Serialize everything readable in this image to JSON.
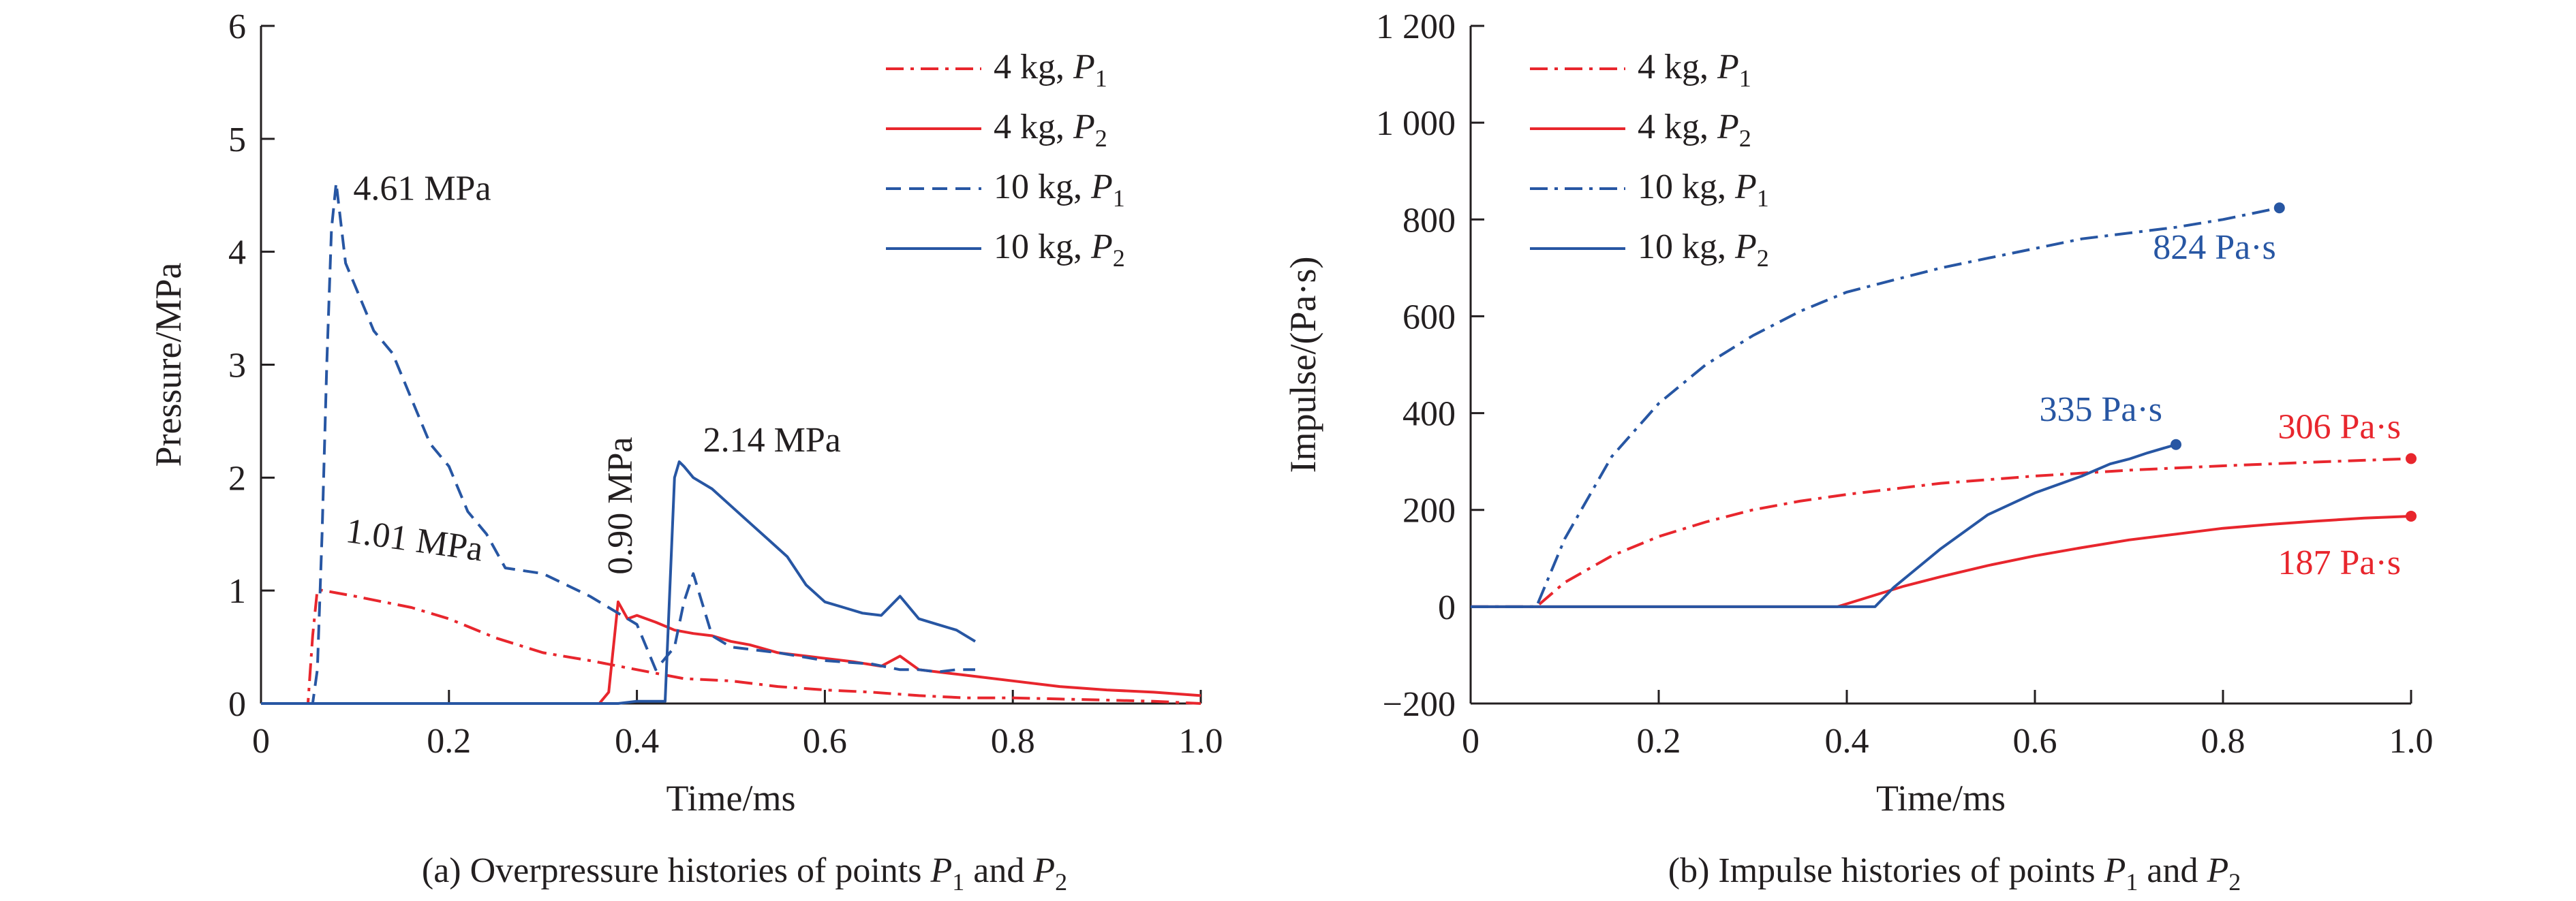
{
  "colors": {
    "red": "#e8262d",
    "blue": "#2756a3",
    "axis": "#231f20"
  },
  "chart_data": [
    {
      "type": "line",
      "xlabel": "Time/ms",
      "ylabel": "Pressure/MPa",
      "xlim": [
        0,
        1.0
      ],
      "ylim": [
        0,
        6
      ],
      "xticks": [
        0,
        0.2,
        0.4,
        0.6,
        0.8,
        1.0
      ],
      "xtick_labels": [
        "0",
        "0.2",
        "0.4",
        "0.6",
        "0.8",
        "1.0"
      ],
      "yticks": [
        0,
        1,
        2,
        3,
        4,
        5,
        6
      ],
      "ytick_labels": [
        "0",
        "1",
        "2",
        "3",
        "4",
        "5",
        "6"
      ],
      "grid": false,
      "legend_position": "top-right",
      "caption": {
        "prefix": "(a) Overpressure histories of points ",
        "p1": "P",
        "p1_sub": "1",
        "mid": " and ",
        "p2": "P",
        "p2_sub": "2"
      },
      "series": [
        {
          "name": "4 kg, P1",
          "label_main": "4 kg, ",
          "label_var": "P",
          "label_sub": "1",
          "color": "#e8262d",
          "dash": "dashdot",
          "x": [
            0,
            0.05,
            0.055,
            0.06,
            0.08,
            0.1,
            0.13,
            0.16,
            0.2,
            0.25,
            0.3,
            0.35,
            0.4,
            0.45,
            0.5,
            0.55,
            0.6,
            0.65,
            0.7,
            0.75,
            0.8,
            0.85,
            0.9,
            0.95,
            1.0
          ],
          "y": [
            0,
            0,
            0.6,
            1.01,
            0.98,
            0.95,
            0.9,
            0.85,
            0.75,
            0.58,
            0.45,
            0.38,
            0.3,
            0.22,
            0.2,
            0.15,
            0.12,
            0.1,
            0.07,
            0.05,
            0.05,
            0.04,
            0.03,
            0.02,
            0.0
          ]
        },
        {
          "name": "4 kg, P2",
          "label_main": "4 kg, ",
          "label_var": "P",
          "label_sub": "2",
          "color": "#e8262d",
          "dash": "solid",
          "x": [
            0,
            0.36,
            0.37,
            0.38,
            0.39,
            0.4,
            0.42,
            0.44,
            0.46,
            0.48,
            0.5,
            0.52,
            0.55,
            0.58,
            0.6,
            0.63,
            0.66,
            0.68,
            0.7,
            0.72,
            0.75,
            0.8,
            0.85,
            0.9,
            0.95,
            1.0
          ],
          "y": [
            0,
            0,
            0.1,
            0.9,
            0.75,
            0.78,
            0.72,
            0.65,
            0.62,
            0.6,
            0.55,
            0.52,
            0.45,
            0.42,
            0.4,
            0.37,
            0.33,
            0.42,
            0.3,
            0.28,
            0.25,
            0.2,
            0.15,
            0.12,
            0.1,
            0.07
          ]
        },
        {
          "name": "10 kg, P1",
          "label_main": "10 kg, ",
          "label_var": "P",
          "label_sub": "1",
          "color": "#2756a3",
          "dash": "dashed",
          "x": [
            0,
            0.055,
            0.06,
            0.065,
            0.07,
            0.075,
            0.08,
            0.09,
            0.1,
            0.12,
            0.14,
            0.16,
            0.18,
            0.2,
            0.22,
            0.24,
            0.26,
            0.3,
            0.35,
            0.38,
            0.4,
            0.42,
            0.44,
            0.45,
            0.46,
            0.48,
            0.5,
            0.55,
            0.6,
            0.65,
            0.68,
            0.7,
            0.72,
            0.74,
            0.76
          ],
          "y": [
            0,
            0,
            0.3,
            1.5,
            3.0,
            4.2,
            4.61,
            3.9,
            3.7,
            3.3,
            3.1,
            2.7,
            2.3,
            2.1,
            1.7,
            1.5,
            1.2,
            1.15,
            0.95,
            0.8,
            0.7,
            0.3,
            0.5,
            0.9,
            1.15,
            0.6,
            0.5,
            0.45,
            0.38,
            0.35,
            0.3,
            0.3,
            0.28,
            0.3,
            0.3
          ]
        },
        {
          "name": "10 kg, P2",
          "label_main": "10 kg, ",
          "label_var": "P",
          "label_sub": "2",
          "color": "#2756a3",
          "dash": "solid",
          "x": [
            0,
            0.38,
            0.4,
            0.43,
            0.44,
            0.445,
            0.45,
            0.46,
            0.48,
            0.5,
            0.52,
            0.54,
            0.56,
            0.58,
            0.6,
            0.62,
            0.64,
            0.66,
            0.68,
            0.7,
            0.72,
            0.74,
            0.76
          ],
          "y": [
            0,
            0,
            0.02,
            0.02,
            2.0,
            2.14,
            2.1,
            2.0,
            1.9,
            1.75,
            1.6,
            1.45,
            1.3,
            1.05,
            0.9,
            0.85,
            0.8,
            0.78,
            0.95,
            0.75,
            0.7,
            0.65,
            0.55
          ]
        }
      ],
      "annotations": [
        {
          "text": "4.61 MPa",
          "x": 0.08,
          "y": 4.61,
          "color": "#231f20"
        },
        {
          "text": "1.01 MPa",
          "x": 0.06,
          "y": 1.01,
          "color": "#231f20"
        },
        {
          "text": "0.90 MPa",
          "x": 0.38,
          "y": 0.9,
          "color": "#231f20"
        },
        {
          "text": "2.14 MPa",
          "x": 0.445,
          "y": 2.14,
          "color": "#231f20"
        }
      ]
    },
    {
      "type": "line",
      "xlabel": "Time/ms",
      "ylabel": "Impulse/(Pa·s)",
      "xlim": [
        0,
        1.0
      ],
      "ylim": [
        -200,
        1200
      ],
      "xticks": [
        0,
        0.2,
        0.4,
        0.6,
        0.8,
        1.0
      ],
      "xtick_labels": [
        "0",
        "0.2",
        "0.4",
        "0.6",
        "0.8",
        "1.0"
      ],
      "yticks": [
        -200,
        0,
        200,
        400,
        600,
        800,
        1000,
        1200
      ],
      "ytick_labels": [
        "−200",
        "0",
        "200",
        "400",
        "600",
        "800",
        "1 000",
        "1 200"
      ],
      "grid": false,
      "legend_position": "top-left",
      "caption": {
        "prefix": "(b) Impulse histories of points ",
        "p1": "P",
        "p1_sub": "1",
        "mid": " and ",
        "p2": "P",
        "p2_sub": "2"
      },
      "series": [
        {
          "name": "4 kg, P1",
          "label_main": "4 kg, ",
          "label_var": "P",
          "label_sub": "1",
          "color": "#e8262d",
          "dash": "dashdot",
          "x": [
            0,
            0.07,
            0.1,
            0.15,
            0.2,
            0.25,
            0.3,
            0.35,
            0.4,
            0.5,
            0.6,
            0.7,
            0.8,
            0.9,
            1.0
          ],
          "y": [
            0,
            0,
            50,
            105,
            145,
            175,
            200,
            218,
            232,
            255,
            270,
            282,
            291,
            299,
            306
          ],
          "end_marker": true
        },
        {
          "name": "4 kg, P2",
          "label_main": "4 kg, ",
          "label_var": "P",
          "label_sub": "2",
          "color": "#e8262d",
          "dash": "solid",
          "x": [
            0,
            0.39,
            0.42,
            0.46,
            0.5,
            0.55,
            0.6,
            0.65,
            0.7,
            0.75,
            0.8,
            0.85,
            0.9,
            0.95,
            1.0
          ],
          "y": [
            0,
            0,
            18,
            42,
            62,
            85,
            105,
            122,
            138,
            150,
            162,
            170,
            177,
            183,
            187
          ],
          "end_marker": true
        },
        {
          "name": "10 kg, P1",
          "label_main": "10 kg, ",
          "label_var": "P",
          "label_sub": "1",
          "color": "#2756a3",
          "dash": "dashdot",
          "x": [
            0,
            0.07,
            0.1,
            0.15,
            0.2,
            0.25,
            0.3,
            0.35,
            0.4,
            0.45,
            0.5,
            0.55,
            0.6,
            0.65,
            0.7,
            0.75,
            0.8,
            0.86
          ],
          "y": [
            0,
            0,
            140,
            310,
            420,
            500,
            560,
            610,
            650,
            675,
            700,
            720,
            740,
            760,
            772,
            784,
            800,
            824
          ],
          "end_marker": true
        },
        {
          "name": "10 kg, P2",
          "label_main": "10 kg, ",
          "label_var": "P",
          "label_sub": "2",
          "color": "#2756a3",
          "dash": "solid",
          "x": [
            0,
            0.43,
            0.45,
            0.5,
            0.55,
            0.6,
            0.65,
            0.68,
            0.7,
            0.72,
            0.75
          ],
          "y": [
            0,
            0,
            40,
            120,
            190,
            235,
            270,
            295,
            305,
            318,
            335
          ],
          "end_marker": true
        }
      ],
      "annotations": [
        {
          "text": "824 Pa·s",
          "x": 0.86,
          "y": 824,
          "color": "#2756a3"
        },
        {
          "text": "335 Pa·s",
          "x": 0.75,
          "y": 335,
          "color": "#2756a3"
        },
        {
          "text": "306 Pa·s",
          "x": 1.0,
          "y": 306,
          "color": "#e8262d"
        },
        {
          "text": "187 Pa·s",
          "x": 1.0,
          "y": 187,
          "color": "#e8262d"
        }
      ]
    }
  ]
}
